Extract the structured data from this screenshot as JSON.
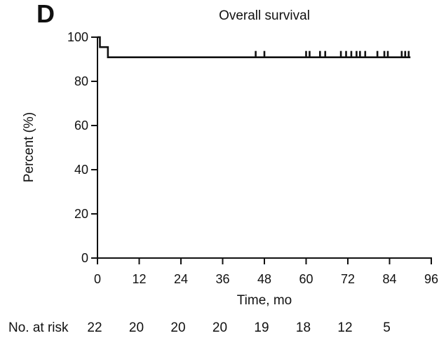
{
  "panel_label": "D",
  "chart_data": {
    "type": "line",
    "chart_kind": "kaplan_meier_step",
    "title": "Overall survival",
    "xlabel": "Time, mo",
    "ylabel": "Percent (%)",
    "xlim": [
      0,
      96
    ],
    "ylim": [
      0,
      100
    ],
    "x_ticks": [
      0,
      12,
      24,
      36,
      48,
      60,
      72,
      84,
      96
    ],
    "y_ticks": [
      0,
      20,
      40,
      60,
      80,
      100
    ],
    "grid": false,
    "legend": "none",
    "line_color": "#111111",
    "background_color": "#ffffff",
    "series": [
      {
        "name": "Overall survival",
        "steps": [
          {
            "time": 0,
            "percent": 100
          },
          {
            "time": 0.7,
            "percent": 95.5
          },
          {
            "time": 3,
            "percent": 90.9
          },
          {
            "time": 90,
            "percent": 90.9
          }
        ],
        "censor_times": [
          45.5,
          48,
          60,
          61,
          64,
          65.5,
          70,
          71.5,
          73,
          74.5,
          75.5,
          77,
          80.5,
          82.5,
          83.5,
          87.5,
          88.5,
          89.5
        ],
        "censor_percent": 90.9
      }
    ],
    "at_risk": {
      "label": "No. at risk",
      "times": [
        0,
        12,
        24,
        36,
        48,
        60,
        72,
        84
      ],
      "counts": [
        22,
        20,
        20,
        20,
        19,
        18,
        12,
        5
      ]
    }
  }
}
